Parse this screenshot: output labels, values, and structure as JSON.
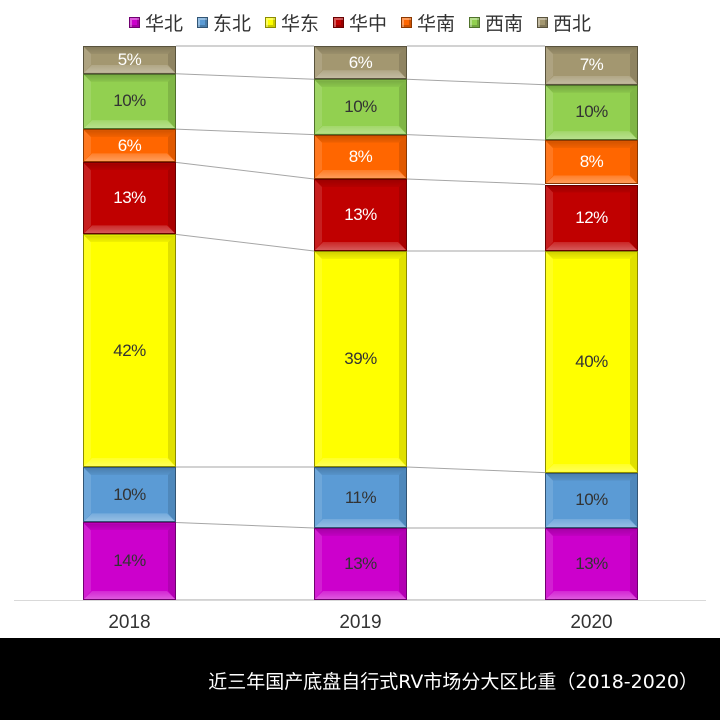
{
  "legend": {
    "items": [
      {
        "label": "华北",
        "color": "#cc00cc"
      },
      {
        "label": "东北",
        "color": "#5b9bd5"
      },
      {
        "label": "华东",
        "color": "#ffff00"
      },
      {
        "label": "华中",
        "color": "#c00000"
      },
      {
        "label": "华南",
        "color": "#ff6600"
      },
      {
        "label": "西南",
        "color": "#92d050"
      },
      {
        "label": "西北",
        "color": "#a39770"
      }
    ]
  },
  "footer": {
    "title": "近三年国产底盘自行式RV市场分大区比重（2018-2020）"
  },
  "chart_data": {
    "type": "bar",
    "stacked": true,
    "percent_stacked": true,
    "title": "近三年国产底盘自行式RV市场分大区比重（2018-2020）",
    "xlabel": "",
    "ylabel": "",
    "ylim": [
      0,
      100
    ],
    "grid": false,
    "legend_position": "top",
    "categories": [
      "2018",
      "2019",
      "2020"
    ],
    "series": [
      {
        "name": "华北",
        "color": "#cc00cc",
        "values": [
          14,
          13,
          13
        ],
        "labels": [
          "14%",
          "13%",
          "13%"
        ],
        "label_color": "#333333"
      },
      {
        "name": "东北",
        "color": "#5b9bd5",
        "values": [
          10,
          11,
          10
        ],
        "labels": [
          "10%",
          "11%",
          "10%"
        ],
        "label_color": "#333333"
      },
      {
        "name": "华东",
        "color": "#ffff00",
        "values": [
          42,
          39,
          40
        ],
        "labels": [
          "42%",
          "39%",
          "40%"
        ],
        "label_color": "#333333"
      },
      {
        "name": "华中",
        "color": "#c00000",
        "values": [
          13,
          13,
          12
        ],
        "labels": [
          "13%",
          "13%",
          "12%"
        ],
        "label_color": "#ffffff"
      },
      {
        "name": "华南",
        "color": "#ff6600",
        "values": [
          6,
          8,
          8
        ],
        "labels": [
          "6%",
          "8%",
          "8%"
        ],
        "label_color": "#ffffff"
      },
      {
        "name": "西南",
        "color": "#92d050",
        "values": [
          10,
          10,
          10
        ],
        "labels": [
          "10%",
          "10%",
          "10%"
        ],
        "label_color": "#333333"
      },
      {
        "name": "西北",
        "color": "#a39770",
        "values": [
          5,
          6,
          7
        ],
        "labels": [
          "5%",
          "6%",
          "7%"
        ],
        "label_color": "#ffffff"
      }
    ],
    "series_lines": true
  }
}
